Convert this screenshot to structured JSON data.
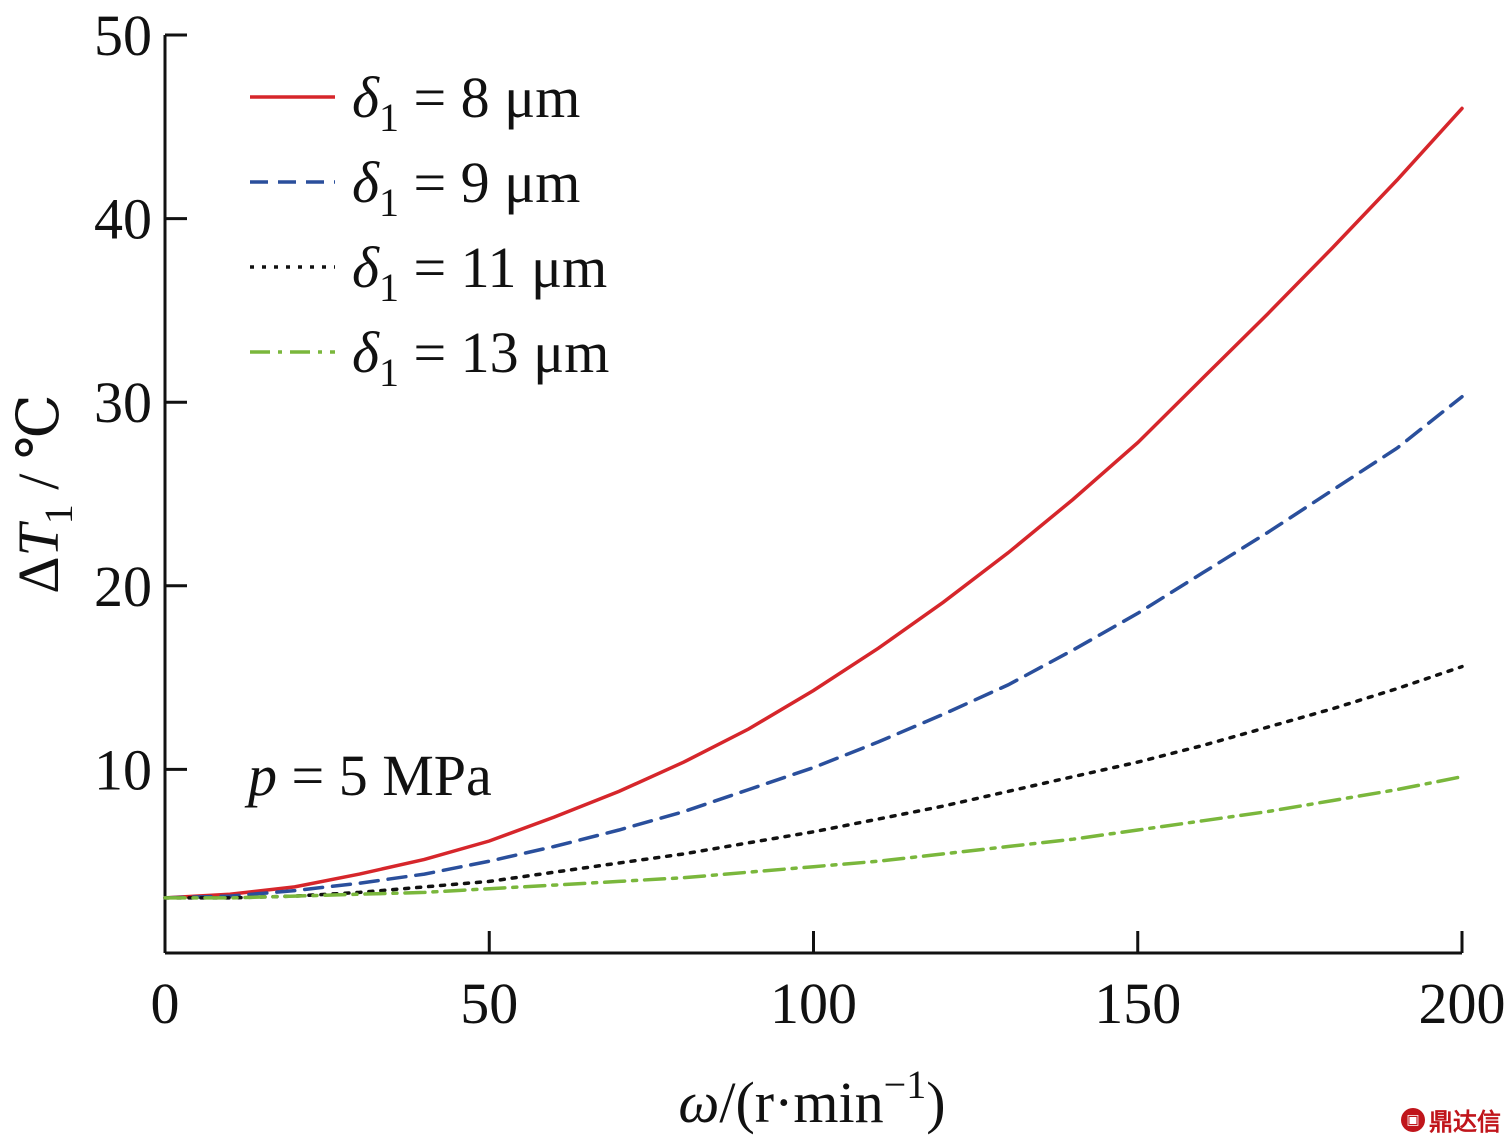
{
  "chart_data": {
    "type": "line",
    "xlabel_parts": {
      "symbol": "ω",
      "unit_open": "/(r·min",
      "exp": "−1",
      "unit_close": ")"
    },
    "ylabel_parts": {
      "delta": "Δ",
      "symbol": "T",
      "sub": "1",
      "unit": " / ℃"
    },
    "xlim": [
      0,
      200
    ],
    "ylim": [
      0,
      50
    ],
    "xticks": [
      0,
      50,
      100,
      150,
      200
    ],
    "yticks": [
      10,
      20,
      30,
      40,
      50
    ],
    "annotation": {
      "symbol": "p",
      "text": " = 5 MPa"
    },
    "legend_position": "top-left",
    "series": [
      {
        "label": {
          "symbol": "δ",
          "sub": "1",
          "text": " = 8 μm"
        },
        "color": "#d6262b",
        "style": "solid",
        "x": [
          0,
          10,
          20,
          30,
          40,
          50,
          60,
          70,
          80,
          90,
          100,
          110,
          120,
          130,
          140,
          150,
          160,
          170,
          180,
          190,
          200
        ],
        "y": [
          3.0,
          3.2,
          3.6,
          4.3,
          5.1,
          6.1,
          7.4,
          8.8,
          10.4,
          12.2,
          14.3,
          16.6,
          19.1,
          21.8,
          24.7,
          27.8,
          31.3,
          34.8,
          38.4,
          42.1,
          46.0
        ]
      },
      {
        "label": {
          "symbol": "δ",
          "sub": "1",
          "text": " = 9 μm"
        },
        "color": "#2a4f9c",
        "style": "dashed",
        "x": [
          0,
          10,
          20,
          30,
          40,
          50,
          60,
          70,
          80,
          90,
          100,
          110,
          120,
          130,
          140,
          150,
          160,
          170,
          180,
          190,
          200
        ],
        "y": [
          3.0,
          3.1,
          3.4,
          3.8,
          4.3,
          5.0,
          5.8,
          6.7,
          7.7,
          8.9,
          10.1,
          11.5,
          13.0,
          14.6,
          16.5,
          18.5,
          20.7,
          22.9,
          25.2,
          27.5,
          30.3
        ]
      },
      {
        "label": {
          "symbol": "δ",
          "sub": "1",
          "text": " = 11 μm"
        },
        "color": "#111111",
        "style": "dotted",
        "x": [
          0,
          10,
          20,
          30,
          40,
          50,
          60,
          70,
          80,
          90,
          100,
          110,
          120,
          130,
          140,
          150,
          160,
          170,
          180,
          190,
          200
        ],
        "y": [
          3.0,
          3.0,
          3.1,
          3.3,
          3.6,
          3.9,
          4.4,
          4.9,
          5.4,
          6.0,
          6.6,
          7.3,
          8.0,
          8.8,
          9.6,
          10.4,
          11.3,
          12.3,
          13.3,
          14.4,
          15.6
        ]
      },
      {
        "label": {
          "symbol": "δ",
          "sub": "1",
          "text": " = 13 μm"
        },
        "color": "#7ab73c",
        "style": "dashdot",
        "x": [
          0,
          10,
          20,
          30,
          40,
          50,
          60,
          70,
          80,
          90,
          100,
          110,
          120,
          130,
          140,
          150,
          160,
          170,
          180,
          190,
          200
        ],
        "y": [
          3.0,
          3.0,
          3.1,
          3.2,
          3.3,
          3.5,
          3.7,
          3.9,
          4.1,
          4.4,
          4.7,
          5.0,
          5.4,
          5.8,
          6.2,
          6.7,
          7.2,
          7.7,
          8.3,
          8.9,
          9.6
        ]
      }
    ]
  },
  "watermark": {
    "icon": "tv-icon",
    "text": "鼎达信"
  }
}
